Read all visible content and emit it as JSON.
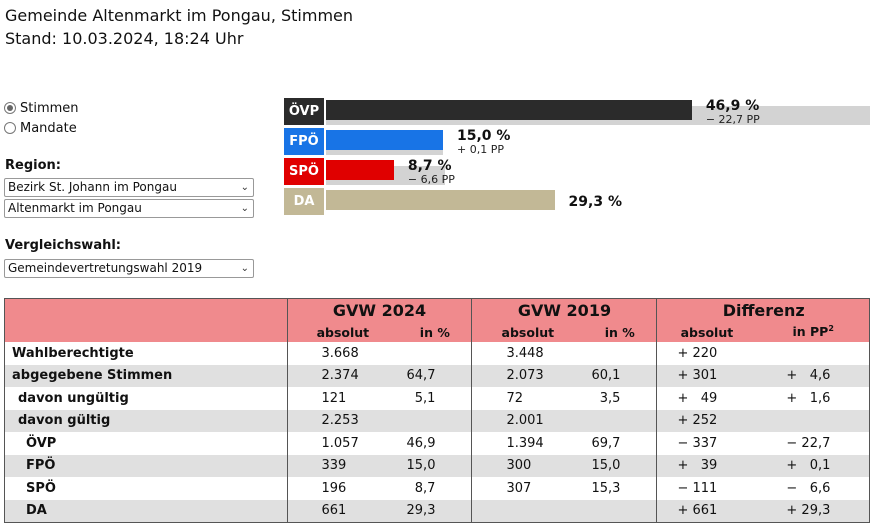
{
  "header": {
    "title": "Gemeinde Altenmarkt im Pongau, Stimmen",
    "subtitle": "Stand: 10.03.2024, 18:24 Uhr"
  },
  "mode": {
    "options": [
      "Stimmen",
      "Mandate"
    ],
    "selected": "Stimmen"
  },
  "region": {
    "label": "Region:",
    "district": "Bezirk St. Johann im Pongau",
    "municipality": "Altenmarkt im Pongau"
  },
  "comparison": {
    "label": "Vergleichswahl:",
    "value": "Gemeindevertretungswahl 2019"
  },
  "chart_data": {
    "type": "bar",
    "categories": [
      "ÖVP",
      "FPÖ",
      "SPÖ",
      "DA"
    ],
    "colors": [
      "#2b2b2b",
      "#1874e6",
      "#e00000",
      "#c2b896"
    ],
    "series": [
      {
        "name": "GVW 2024",
        "values": [
          46.9,
          15.0,
          8.7,
          29.3
        ]
      },
      {
        "name": "GVW 2019",
        "values": [
          69.7,
          15.0,
          15.3,
          null
        ]
      }
    ],
    "labels": [
      "46,9 %",
      "15,0 %",
      "8,7 %",
      "29,3 %"
    ],
    "diffs": [
      "− 22,7 PP",
      "+ 0,1 PP",
      "− 6,6 PP",
      ""
    ]
  },
  "table": {
    "groups": [
      "GVW 2024",
      "GVW 2019",
      "Differenz"
    ],
    "subheaders": [
      "absolut",
      "in %",
      "absolut",
      "in %",
      "absolut",
      "in PP"
    ],
    "pp_footnote": "2",
    "rows": [
      {
        "name": "Wahlberechtigte",
        "indent": 0,
        "cells": [
          "3.668",
          "",
          "3.448",
          "",
          "+ 220",
          ""
        ]
      },
      {
        "name": "abgegebene Stimmen",
        "indent": 0,
        "cells": [
          "2.374",
          "64,7",
          "2.073",
          "60,1",
          "+ 301",
          "+   4,6"
        ]
      },
      {
        "name": "davon ungültig",
        "indent": 1,
        "cells": [
          "121",
          "5,1",
          "72",
          "3,5",
          "+   49",
          "+   1,6"
        ]
      },
      {
        "name": "davon gültig",
        "indent": 1,
        "cells": [
          "2.253",
          "",
          "2.001",
          "",
          "+ 252",
          ""
        ]
      },
      {
        "name": "ÖVP",
        "indent": 2,
        "cells": [
          "1.057",
          "46,9",
          "1.394",
          "69,7",
          "− 337",
          "− 22,7"
        ]
      },
      {
        "name": "FPÖ",
        "indent": 2,
        "cells": [
          "339",
          "15,0",
          "300",
          "15,0",
          "+   39",
          "+   0,1"
        ]
      },
      {
        "name": "SPÖ",
        "indent": 2,
        "cells": [
          "196",
          "8,7",
          "307",
          "15,3",
          "− 111",
          "−   6,6"
        ]
      },
      {
        "name": "DA",
        "indent": 2,
        "cells": [
          "661",
          "29,3",
          "",
          "",
          "+ 661",
          "+ 29,3"
        ]
      }
    ]
  }
}
